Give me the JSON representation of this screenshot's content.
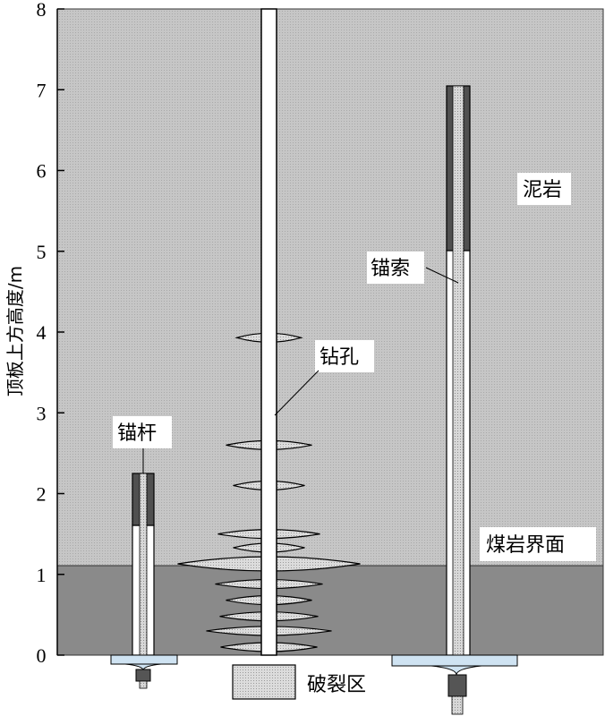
{
  "diagram": {
    "y_axis": {
      "title": "顶板上方高度/m",
      "ticks": [
        "0",
        "1",
        "2",
        "3",
        "4",
        "5",
        "6",
        "7",
        "8"
      ],
      "range": [
        0,
        8
      ]
    },
    "strata": {
      "mudstone": "泥岩",
      "interface": "煤岩界面",
      "interface_height_m": 1.1
    },
    "labels": {
      "bolt": "锚杆",
      "borehole": "钻孔",
      "cable": "锚索",
      "legend_fracture": "破裂区"
    },
    "bolt": {
      "height_m": 2.25,
      "anchored_from_m": 1.6
    },
    "cable": {
      "height_m": 7.05,
      "anchored_from_m": 5.0
    },
    "borehole": {
      "height_m": 8.0
    },
    "fracture_zone_heights_m": [
      3.93,
      2.6,
      2.1,
      1.5,
      1.33,
      1.13,
      0.88,
      0.68,
      0.48,
      0.3,
      0.1
    ],
    "colors": {
      "mudstone": "#c8c8c8",
      "coal": "#8a8a8a",
      "anchorage": "#505050",
      "plate": "#cfe3f2",
      "fracture": "#d2d2d2"
    }
  }
}
